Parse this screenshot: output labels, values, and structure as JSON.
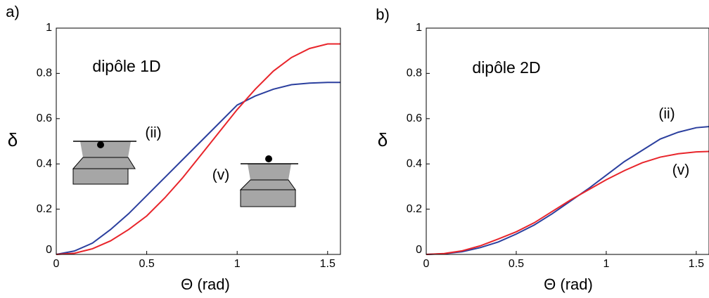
{
  "chart_data": [
    {
      "type": "line",
      "panel": "a)",
      "annotation": "dipôle 1D",
      "xlabel": "Θ (rad)",
      "ylabel": "δ",
      "x": [
        0,
        0.1,
        0.2,
        0.3,
        0.4,
        0.5,
        0.6,
        0.7,
        0.8,
        0.9,
        1.0,
        1.1,
        1.2,
        1.3,
        1.4,
        1.5,
        1.5708
      ],
      "series": [
        {
          "name": "(ii)",
          "color": "#2b3f9e",
          "values": [
            0,
            0.015,
            0.05,
            0.11,
            0.18,
            0.26,
            0.34,
            0.42,
            0.5,
            0.58,
            0.66,
            0.7,
            0.73,
            0.75,
            0.757,
            0.76,
            0.76
          ]
        },
        {
          "name": "(v)",
          "color": "#e8252b",
          "values": [
            0,
            0.005,
            0.025,
            0.06,
            0.11,
            0.17,
            0.25,
            0.34,
            0.44,
            0.54,
            0.64,
            0.73,
            0.81,
            0.87,
            0.91,
            0.93,
            0.93
          ]
        }
      ],
      "xlim": [
        0,
        1.5708
      ],
      "ylim": [
        0,
        1
      ],
      "xticks": [
        0,
        0.5,
        1,
        1.5
      ],
      "yticks": [
        0,
        0.2,
        0.4,
        0.6,
        0.8,
        1
      ]
    },
    {
      "type": "line",
      "panel": "b)",
      "annotation": "dipôle 2D",
      "xlabel": "Θ (rad)",
      "ylabel": "δ",
      "x": [
        0,
        0.1,
        0.2,
        0.3,
        0.4,
        0.5,
        0.6,
        0.7,
        0.8,
        0.9,
        1.0,
        1.1,
        1.2,
        1.3,
        1.4,
        1.5,
        1.5708
      ],
      "series": [
        {
          "name": "(ii)",
          "color": "#2b3f9e",
          "values": [
            0,
            0.003,
            0.012,
            0.03,
            0.055,
            0.09,
            0.13,
            0.18,
            0.235,
            0.29,
            0.35,
            0.41,
            0.46,
            0.51,
            0.54,
            0.56,
            0.565
          ]
        },
        {
          "name": "(v)",
          "color": "#e8252b",
          "values": [
            0,
            0.004,
            0.016,
            0.038,
            0.068,
            0.1,
            0.14,
            0.19,
            0.24,
            0.285,
            0.33,
            0.37,
            0.405,
            0.43,
            0.445,
            0.453,
            0.455
          ]
        }
      ],
      "xlim": [
        0,
        1.5708
      ],
      "ylim": [
        0,
        1
      ],
      "xticks": [
        0,
        0.5,
        1,
        1.5
      ],
      "yticks": [
        0,
        0.2,
        0.4,
        0.6,
        0.8,
        1
      ]
    }
  ]
}
